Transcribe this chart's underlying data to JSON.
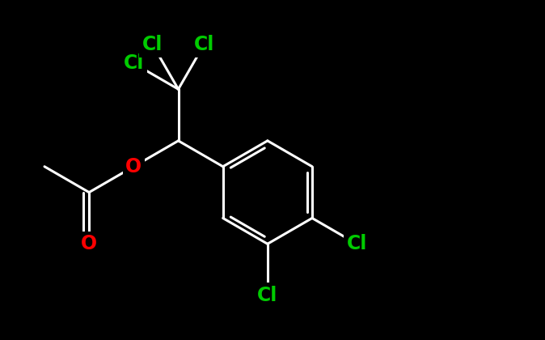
{
  "background_color": "#000000",
  "bond_color": "#ffffff",
  "bond_width": 2.2,
  "font_size_atoms": 17,
  "fig_width": 6.74,
  "fig_height": 4.2,
  "dpi": 100,
  "atom_label_colors": {
    "O_carbonyl": "#ff0000",
    "O_ester": "#ff0000",
    "Cl_a": "#00cc00",
    "Cl_b": "#00cc00",
    "Cl_c": "#00cc00",
    "Cl_3": "#00cc00",
    "Cl_4": "#00cc00"
  }
}
